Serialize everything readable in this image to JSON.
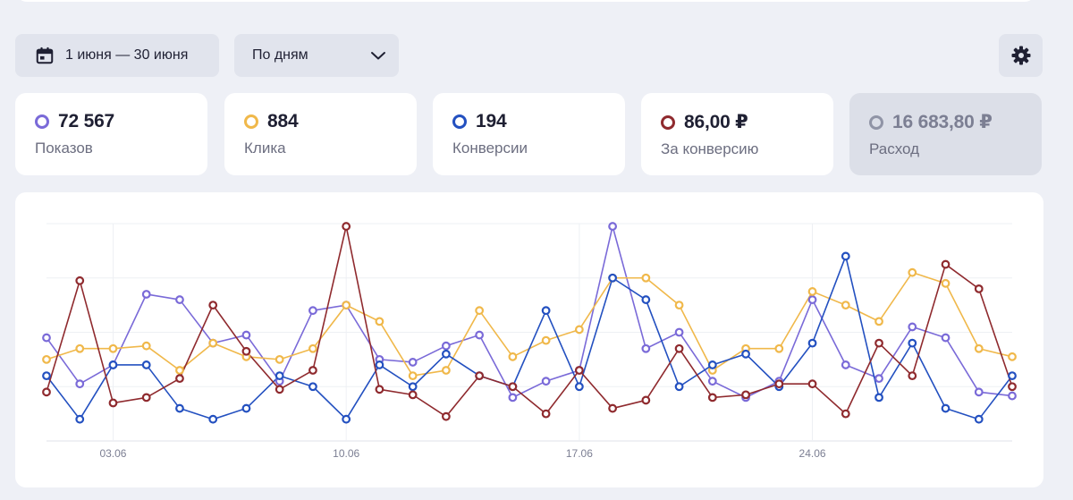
{
  "toolbar": {
    "date_range": "1 июня — 30 июня",
    "grouping": "По дням"
  },
  "metrics": [
    {
      "value": "72 567",
      "label": "Показов",
      "color": "#7a6ad8",
      "active": true
    },
    {
      "value": "884",
      "label": "Клика",
      "color": "#f0b84a",
      "active": true
    },
    {
      "value": "194",
      "label": "Конверсии",
      "color": "#2350c0",
      "active": true
    },
    {
      "value": "86,00 ₽",
      "label": "За конверсию",
      "color": "#8f2a2e",
      "active": true
    },
    {
      "value": "16 683,80 ₽",
      "label": "Расход",
      "color": "#9094a6",
      "active": false
    }
  ],
  "chart_data": {
    "type": "line",
    "x": [
      1,
      2,
      3,
      4,
      5,
      6,
      7,
      8,
      9,
      10,
      11,
      12,
      13,
      14,
      15,
      16,
      17,
      18,
      19,
      20,
      21,
      22,
      23,
      24,
      25,
      26,
      27,
      28,
      29,
      30
    ],
    "tick_labels": [
      {
        "day": 3,
        "label": "03.06"
      },
      {
        "day": 10,
        "label": "10.06"
      },
      {
        "day": 17,
        "label": "17.06"
      },
      {
        "day": 24,
        "label": "24.06"
      }
    ],
    "ylim": [
      0,
      4
    ],
    "grid": true,
    "series": [
      {
        "key": "shows",
        "color": "#7a6ad8",
        "values": [
          1.9,
          1.05,
          1.4,
          2.7,
          2.6,
          1.8,
          1.95,
          1.1,
          2.4,
          2.5,
          1.5,
          1.45,
          1.75,
          1.95,
          0.8,
          1.1,
          1.3,
          3.95,
          1.7,
          2.0,
          1.1,
          0.8,
          1.1,
          2.6,
          1.4,
          1.15,
          2.1,
          1.9,
          0.9,
          0.83
        ]
      },
      {
        "key": "clicks",
        "color": "#f0b84a",
        "values": [
          1.5,
          1.7,
          1.7,
          1.75,
          1.3,
          1.8,
          1.55,
          1.5,
          1.7,
          2.5,
          2.2,
          1.2,
          1.3,
          2.4,
          1.55,
          1.85,
          2.05,
          3.0,
          3.0,
          2.5,
          1.3,
          1.7,
          1.7,
          2.75,
          2.5,
          2.2,
          3.1,
          2.9,
          1.7,
          1.55
        ]
      },
      {
        "key": "conversions",
        "color": "#2350c0",
        "values": [
          1.2,
          0.4,
          1.4,
          1.4,
          0.6,
          0.4,
          0.6,
          1.2,
          1.0,
          0.4,
          1.4,
          1.0,
          1.6,
          1.2,
          1.0,
          2.4,
          1.0,
          3.0,
          2.6,
          1.0,
          1.4,
          1.6,
          1.0,
          1.8,
          3.4,
          0.8,
          1.8,
          0.6,
          0.4,
          1.2
        ]
      },
      {
        "key": "per_conversion",
        "color": "#8f2a2e",
        "values": [
          0.9,
          2.95,
          0.7,
          0.8,
          1.15,
          2.5,
          1.65,
          0.95,
          1.3,
          3.95,
          0.95,
          0.85,
          0.45,
          1.2,
          1.0,
          0.5,
          1.3,
          0.6,
          0.75,
          1.7,
          0.8,
          0.85,
          1.05,
          1.05,
          0.5,
          1.8,
          1.2,
          3.25,
          2.8,
          1.0
        ]
      }
    ]
  }
}
